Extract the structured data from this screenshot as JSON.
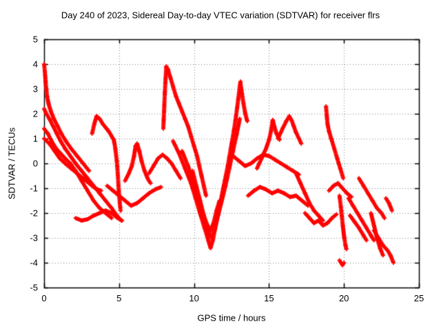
{
  "chart_data": {
    "type": "scatter",
    "title": "Day 240 of 2023, Sidereal Day-to-day VTEC variation (SDTVAR) for receiver flrs",
    "xlabel": "GPS time / hours",
    "ylabel": "SDTVAR / TECUs",
    "xlim": [
      0,
      25
    ],
    "ylim": [
      -5,
      5
    ],
    "xticks": [
      0,
      5,
      10,
      15,
      20,
      25
    ],
    "yticks": [
      -5,
      -4,
      -3,
      -2,
      -1,
      0,
      1,
      2,
      3,
      4,
      5
    ],
    "grid": true,
    "legend": "none",
    "marker": "plus",
    "colors": {
      "series": "#ff0000",
      "grid": "#808080",
      "border": "#000000",
      "background": "#ffffff",
      "text": "#000000"
    },
    "series": [
      [
        [
          0.0,
          4.0
        ],
        [
          0.05,
          3.7
        ],
        [
          0.1,
          3.3
        ],
        [
          0.15,
          3.0
        ],
        [
          0.2,
          2.7
        ],
        [
          0.3,
          2.4
        ],
        [
          0.45,
          2.1
        ],
        [
          0.65,
          1.8
        ],
        [
          0.9,
          1.5
        ],
        [
          1.15,
          1.2
        ],
        [
          1.45,
          0.9
        ],
        [
          1.8,
          0.6
        ],
        [
          2.2,
          0.3
        ],
        [
          2.6,
          0.0
        ],
        [
          3.0,
          -0.3
        ]
      ],
      [
        [
          0.0,
          2.2
        ],
        [
          0.15,
          2.0
        ],
        [
          0.35,
          1.8
        ],
        [
          0.6,
          1.5
        ],
        [
          0.85,
          1.2
        ],
        [
          1.1,
          0.9
        ],
        [
          1.4,
          0.6
        ],
        [
          1.75,
          0.3
        ],
        [
          2.1,
          0.0
        ],
        [
          2.5,
          -0.3
        ],
        [
          2.9,
          -0.6
        ],
        [
          3.3,
          -0.9
        ],
        [
          3.7,
          -1.2
        ],
        [
          4.1,
          -1.5
        ],
        [
          4.5,
          -1.8
        ],
        [
          4.85,
          -2.1
        ],
        [
          5.15,
          -2.3
        ]
      ],
      [
        [
          0.0,
          1.4
        ],
        [
          0.25,
          1.2
        ],
        [
          0.5,
          0.9
        ],
        [
          0.8,
          0.6
        ],
        [
          1.1,
          0.4
        ],
        [
          1.4,
          0.2
        ],
        [
          1.75,
          0.0
        ],
        [
          2.1,
          -0.3
        ],
        [
          2.5,
          -0.7
        ],
        [
          2.9,
          -1.1
        ],
        [
          3.3,
          -1.5
        ],
        [
          3.7,
          -1.8
        ],
        [
          4.1,
          -2.0
        ],
        [
          4.5,
          -2.2
        ]
      ],
      [
        [
          0.0,
          1.0
        ],
        [
          0.35,
          0.8
        ],
        [
          0.7,
          0.5
        ],
        [
          1.05,
          0.2
        ],
        [
          1.4,
          0.0
        ],
        [
          1.8,
          -0.2
        ],
        [
          2.2,
          -0.4
        ],
        [
          2.6,
          -0.6
        ],
        [
          3.0,
          -0.8
        ],
        [
          3.4,
          -1.0
        ],
        [
          3.8,
          -1.1
        ]
      ],
      [
        [
          2.1,
          -2.2
        ],
        [
          2.5,
          -2.3
        ],
        [
          2.9,
          -2.25
        ],
        [
          3.3,
          -2.1
        ],
        [
          3.7,
          -2.0
        ],
        [
          4.1,
          -1.9
        ],
        [
          4.5,
          -2.0
        ],
        [
          4.9,
          -2.2
        ],
        [
          5.2,
          -2.3
        ]
      ],
      [
        [
          3.2,
          1.2
        ],
        [
          3.35,
          1.6
        ],
        [
          3.5,
          1.9
        ],
        [
          3.7,
          1.8
        ],
        [
          3.9,
          1.6
        ],
        [
          4.1,
          1.45
        ],
        [
          4.3,
          1.3
        ],
        [
          4.5,
          1.1
        ],
        [
          4.65,
          0.95
        ],
        [
          4.75,
          0.6
        ],
        [
          4.85,
          0.1
        ],
        [
          4.92,
          -0.5
        ],
        [
          4.98,
          -1.1
        ],
        [
          5.05,
          -1.6
        ],
        [
          5.1,
          -1.9
        ]
      ],
      [
        [
          4.2,
          -0.9
        ],
        [
          4.6,
          -1.1
        ],
        [
          5.0,
          -1.3
        ],
        [
          5.4,
          -1.5
        ],
        [
          5.8,
          -1.7
        ],
        [
          6.2,
          -1.6
        ],
        [
          6.6,
          -1.4
        ],
        [
          7.0,
          -1.2
        ],
        [
          7.4,
          -1.05
        ],
        [
          7.8,
          -0.95
        ]
      ],
      [
        [
          5.4,
          -0.7
        ],
        [
          5.65,
          -0.4
        ],
        [
          5.85,
          -0.1
        ],
        [
          6.0,
          0.3
        ],
        [
          6.1,
          0.7
        ],
        [
          6.2,
          0.8
        ],
        [
          6.35,
          0.5
        ],
        [
          6.5,
          0.1
        ],
        [
          6.7,
          -0.3
        ],
        [
          6.9,
          -0.6
        ],
        [
          7.1,
          -0.8
        ]
      ],
      [
        [
          7.0,
          -0.4
        ],
        [
          7.3,
          -0.1
        ],
        [
          7.6,
          0.2
        ],
        [
          7.9,
          0.35
        ],
        [
          8.2,
          0.2
        ],
        [
          8.5,
          0.0
        ],
        [
          8.8,
          -0.3
        ],
        [
          9.1,
          -0.6
        ]
      ],
      [
        [
          7.95,
          1.4
        ],
        [
          8.0,
          2.1
        ],
        [
          8.05,
          2.8
        ],
        [
          8.1,
          3.4
        ],
        [
          8.15,
          3.9
        ],
        [
          8.25,
          3.8
        ],
        [
          8.4,
          3.5
        ],
        [
          8.6,
          3.1
        ],
        [
          8.8,
          2.7
        ],
        [
          9.0,
          2.4
        ],
        [
          9.2,
          2.1
        ],
        [
          9.4,
          1.8
        ],
        [
          9.6,
          1.5
        ],
        [
          9.8,
          1.1
        ],
        [
          10.0,
          0.7
        ],
        [
          10.2,
          0.3
        ],
        [
          10.35,
          -0.1
        ],
        [
          10.5,
          -0.5
        ],
        [
          10.65,
          -0.9
        ],
        [
          10.8,
          -1.3
        ]
      ],
      [
        [
          8.6,
          0.9
        ],
        [
          9.0,
          0.4
        ],
        [
          9.4,
          -0.2
        ],
        [
          9.8,
          -0.8
        ],
        [
          10.1,
          -1.4
        ],
        [
          10.4,
          -2.0
        ],
        [
          10.7,
          -2.6
        ],
        [
          10.95,
          -3.1
        ],
        [
          11.1,
          -3.4
        ],
        [
          11.25,
          -3.1
        ],
        [
          11.45,
          -2.5
        ],
        [
          11.65,
          -1.9
        ],
        [
          11.85,
          -1.3
        ],
        [
          12.05,
          -0.7
        ],
        [
          12.25,
          -0.1
        ],
        [
          12.45,
          0.6
        ],
        [
          12.65,
          1.3
        ],
        [
          12.8,
          1.9
        ],
        [
          12.95,
          2.6
        ],
        [
          13.05,
          3.1
        ],
        [
          13.1,
          3.3
        ]
      ],
      [
        [
          13.1,
          3.2
        ],
        [
          13.2,
          2.8
        ],
        [
          13.3,
          2.4
        ],
        [
          13.42,
          2.0
        ],
        [
          13.55,
          1.7
        ]
      ],
      [
        [
          9.2,
          0.5
        ],
        [
          9.6,
          -0.1
        ],
        [
          10.0,
          -0.8
        ],
        [
          10.35,
          -1.5
        ],
        [
          10.65,
          -2.1
        ],
        [
          10.9,
          -2.7
        ],
        [
          11.15,
          -3.0
        ],
        [
          11.35,
          -2.7
        ],
        [
          11.6,
          -2.1
        ],
        [
          11.85,
          -1.5
        ],
        [
          12.1,
          -0.9
        ],
        [
          12.35,
          -0.2
        ],
        [
          12.6,
          0.5
        ],
        [
          12.85,
          1.2
        ],
        [
          13.05,
          1.8
        ]
      ],
      [
        [
          9.9,
          -0.3
        ],
        [
          10.15,
          -0.9
        ],
        [
          10.4,
          -1.5
        ],
        [
          10.65,
          -2.1
        ],
        [
          10.9,
          -2.5
        ],
        [
          11.1,
          -2.7
        ],
        [
          11.3,
          -2.4
        ],
        [
          11.5,
          -1.9
        ],
        [
          11.7,
          -1.5
        ]
      ],
      [
        [
          12.6,
          0.3
        ],
        [
          13.0,
          0.1
        ],
        [
          13.4,
          -0.1
        ],
        [
          13.8,
          0.0
        ],
        [
          14.2,
          0.2
        ],
        [
          14.6,
          0.35
        ],
        [
          15.0,
          0.3
        ],
        [
          15.4,
          0.15
        ],
        [
          15.8,
          0.0
        ],
        [
          16.2,
          -0.15
        ],
        [
          16.6,
          -0.3
        ],
        [
          17.0,
          -0.45
        ]
      ],
      [
        [
          14.2,
          -0.2
        ],
        [
          14.5,
          0.2
        ],
        [
          14.8,
          0.6
        ],
        [
          15.0,
          0.95
        ],
        [
          15.15,
          1.35
        ],
        [
          15.25,
          1.75
        ],
        [
          15.35,
          1.5
        ],
        [
          15.5,
          1.2
        ],
        [
          15.7,
          0.95
        ]
      ],
      [
        [
          15.6,
          1.0
        ],
        [
          15.9,
          1.4
        ],
        [
          16.15,
          1.7
        ],
        [
          16.35,
          1.9
        ],
        [
          16.5,
          1.75
        ],
        [
          16.65,
          1.5
        ],
        [
          16.8,
          1.25
        ],
        [
          17.0,
          1.0
        ],
        [
          17.15,
          0.8
        ]
      ],
      [
        [
          13.6,
          -1.3
        ],
        [
          14.0,
          -1.1
        ],
        [
          14.4,
          -0.95
        ],
        [
          14.8,
          -1.05
        ],
        [
          15.2,
          -1.2
        ],
        [
          15.6,
          -1.1
        ],
        [
          16.0,
          -1.2
        ],
        [
          16.4,
          -1.35
        ],
        [
          16.8,
          -1.3
        ],
        [
          17.2,
          -1.5
        ],
        [
          17.6,
          -1.7
        ]
      ],
      [
        [
          16.8,
          -0.4
        ],
        [
          17.1,
          -0.8
        ],
        [
          17.4,
          -1.2
        ],
        [
          17.7,
          -1.6
        ],
        [
          18.0,
          -1.9
        ],
        [
          18.3,
          -2.1
        ],
        [
          18.6,
          -2.3
        ]
      ],
      [
        [
          17.4,
          -2.0
        ],
        [
          17.7,
          -2.2
        ],
        [
          18.0,
          -2.4
        ],
        [
          18.3,
          -2.3
        ],
        [
          18.6,
          -2.5
        ],
        [
          18.9,
          -2.4
        ],
        [
          19.2,
          -2.2
        ],
        [
          19.5,
          -2.05
        ]
      ],
      [
        [
          19.0,
          -1.1
        ],
        [
          19.3,
          -0.9
        ],
        [
          19.6,
          -0.8
        ],
        [
          19.9,
          -1.0
        ],
        [
          20.2,
          -1.2
        ],
        [
          20.5,
          -1.35
        ]
      ],
      [
        [
          18.8,
          2.3
        ],
        [
          18.85,
          1.95
        ],
        [
          18.9,
          1.6
        ],
        [
          19.0,
          1.3
        ],
        [
          19.15,
          1.0
        ],
        [
          19.35,
          0.6
        ],
        [
          19.55,
          0.2
        ],
        [
          19.75,
          -0.2
        ],
        [
          19.95,
          -0.6
        ]
      ],
      [
        [
          19.7,
          -1.3
        ],
        [
          19.82,
          -1.9
        ],
        [
          19.92,
          -2.5
        ],
        [
          20.02,
          -3.0
        ],
        [
          20.1,
          -3.3
        ],
        [
          20.16,
          -3.45
        ]
      ],
      [
        [
          19.7,
          -3.9
        ],
        [
          19.8,
          -4.0
        ],
        [
          19.9,
          -4.1
        ],
        [
          20.0,
          -4.0
        ]
      ],
      [
        [
          20.3,
          -1.4
        ],
        [
          20.6,
          -1.7
        ],
        [
          20.9,
          -2.0
        ],
        [
          21.2,
          -2.3
        ],
        [
          21.5,
          -2.6
        ],
        [
          21.8,
          -2.9
        ],
        [
          22.0,
          -3.1
        ]
      ],
      [
        [
          20.4,
          -2.1
        ],
        [
          20.7,
          -2.35
        ],
        [
          21.0,
          -2.6
        ],
        [
          21.3,
          -2.9
        ],
        [
          21.5,
          -3.1
        ]
      ],
      [
        [
          21.0,
          -0.6
        ],
        [
          21.3,
          -0.9
        ],
        [
          21.6,
          -1.2
        ],
        [
          21.9,
          -1.5
        ],
        [
          22.2,
          -1.8
        ],
        [
          22.5,
          -2.0
        ],
        [
          22.7,
          -2.2
        ]
      ],
      [
        [
          22.0,
          -2.7
        ],
        [
          22.3,
          -3.0
        ],
        [
          22.6,
          -3.3
        ],
        [
          22.9,
          -3.5
        ],
        [
          23.1,
          -3.7
        ],
        [
          23.3,
          -4.0
        ]
      ],
      [
        [
          21.8,
          -2.0
        ],
        [
          22.0,
          -2.5
        ],
        [
          22.2,
          -3.0
        ],
        [
          22.4,
          -3.4
        ],
        [
          22.6,
          -3.7
        ]
      ],
      [
        [
          22.8,
          -1.4
        ],
        [
          23.0,
          -1.6
        ],
        [
          23.2,
          -1.9
        ]
      ]
    ]
  }
}
